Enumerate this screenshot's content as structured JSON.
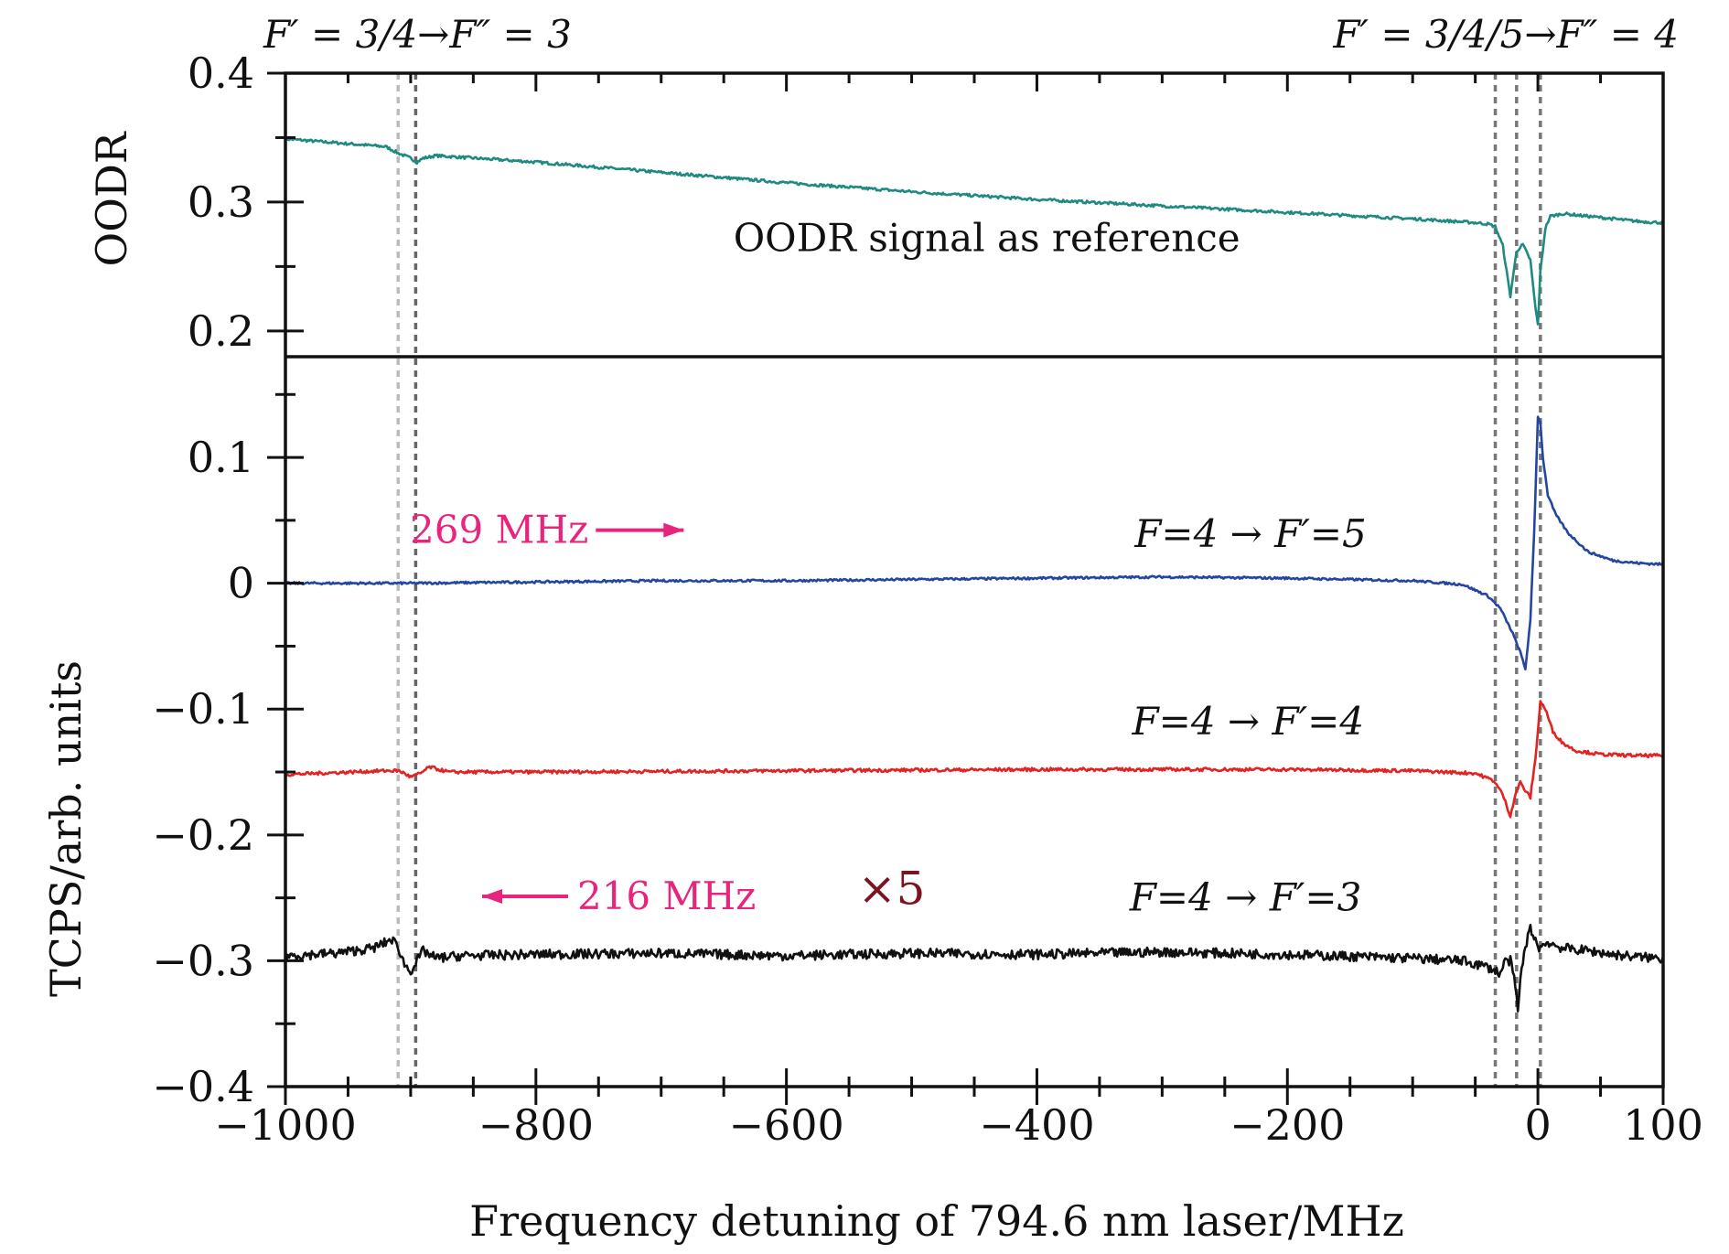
{
  "chart_data": [
    {
      "panel": "top",
      "type": "line",
      "ylabel": "OODR",
      "ylim": [
        0.18,
        0.4
      ],
      "yticks": [
        {
          "value": 0.2,
          "label": "0.2"
        },
        {
          "value": 0.3,
          "label": "0.3"
        },
        {
          "value": 0.4,
          "label": "0.4"
        }
      ],
      "series": [
        {
          "name": "OODR signal",
          "color": "#1f8a80",
          "x": [
            -1000,
            -920,
            -910,
            -900,
            -895,
            -890,
            -880,
            -800,
            -700,
            -600,
            -500,
            -400,
            -300,
            -200,
            -100,
            -50,
            -40,
            -34,
            -28,
            -22,
            -17,
            -12,
            -6,
            -2,
            0,
            2,
            6,
            10,
            20,
            40,
            60,
            80,
            100
          ],
          "y": [
            0.349,
            0.343,
            0.338,
            0.334,
            0.331,
            0.334,
            0.336,
            0.331,
            0.323,
            0.315,
            0.308,
            0.302,
            0.297,
            0.292,
            0.287,
            0.284,
            0.283,
            0.281,
            0.266,
            0.227,
            0.262,
            0.267,
            0.255,
            0.218,
            0.205,
            0.246,
            0.28,
            0.289,
            0.291,
            0.289,
            0.287,
            0.285,
            0.284
          ]
        }
      ],
      "annotations": [
        {
          "text": "OODR signal as reference",
          "x": -440,
          "y": 0.262
        }
      ]
    },
    {
      "panel": "bottom",
      "type": "line",
      "ylabel": "TCPS/arb. units",
      "xlabel": "Frequency detuning of 794.6 nm laser/MHz",
      "xlim": [
        -1000,
        100
      ],
      "ylim": [
        -0.4,
        0.18
      ],
      "xticks": [
        {
          "value": -1000,
          "label": "−1000"
        },
        {
          "value": -800,
          "label": "−800"
        },
        {
          "value": -600,
          "label": "−600"
        },
        {
          "value": -400,
          "label": "−400"
        },
        {
          "value": -200,
          "label": "−200"
        },
        {
          "value": 0,
          "label": "0"
        },
        {
          "value": 100,
          "label": "100"
        }
      ],
      "yticks": [
        {
          "value": -0.4,
          "label": "−0.4"
        },
        {
          "value": -0.3,
          "label": "−0.3"
        },
        {
          "value": -0.2,
          "label": "−0.2"
        },
        {
          "value": -0.1,
          "label": "−0.1"
        },
        {
          "value": 0,
          "label": "0"
        },
        {
          "value": 0.1,
          "label": "0.1"
        }
      ],
      "series": [
        {
          "name": "F=4 → F′=5",
          "color": "#2346a0",
          "x": [
            -1000,
            -900,
            -800,
            -700,
            -600,
            -500,
            -400,
            -300,
            -200,
            -100,
            -60,
            -40,
            -30,
            -20,
            -14,
            -10,
            -6,
            -3,
            0,
            2,
            4,
            8,
            14,
            24,
            40,
            60,
            80,
            100
          ],
          "y": [
            0.0,
            0.0,
            0.001,
            0.002,
            0.002,
            0.003,
            0.004,
            0.005,
            0.004,
            0.002,
            -0.001,
            -0.01,
            -0.02,
            -0.04,
            -0.055,
            -0.068,
            -0.03,
            0.04,
            0.132,
            0.128,
            0.1,
            0.07,
            0.055,
            0.04,
            0.025,
            0.018,
            0.016,
            0.015
          ]
        },
        {
          "name": "F=4 → F′=4",
          "color": "#e32222",
          "x": [
            -1000,
            -920,
            -910,
            -905,
            -900,
            -892,
            -885,
            -870,
            -800,
            -600,
            -400,
            -200,
            -100,
            -50,
            -35,
            -28,
            -22,
            -18,
            -14,
            -10,
            -6,
            -2,
            2,
            6,
            12,
            20,
            30,
            50,
            80,
            100
          ],
          "y": [
            -0.152,
            -0.149,
            -0.149,
            -0.151,
            -0.154,
            -0.151,
            -0.146,
            -0.15,
            -0.15,
            -0.149,
            -0.148,
            -0.148,
            -0.149,
            -0.151,
            -0.157,
            -0.168,
            -0.185,
            -0.168,
            -0.158,
            -0.165,
            -0.17,
            -0.14,
            -0.094,
            -0.1,
            -0.118,
            -0.127,
            -0.133,
            -0.136,
            -0.137,
            -0.137
          ]
        },
        {
          "name": "F=4 → F′=3",
          "color": "#111111",
          "x": [
            -1000,
            -960,
            -930,
            -915,
            -910,
            -905,
            -900,
            -896,
            -890,
            -880,
            -860,
            -800,
            -700,
            -600,
            -500,
            -400,
            -300,
            -200,
            -100,
            -60,
            -40,
            -30,
            -26,
            -22,
            -18,
            -16,
            -14,
            -10,
            -6,
            -2,
            0,
            4,
            8,
            14,
            20,
            40,
            60,
            80,
            100
          ],
          "y": [
            -0.296,
            -0.294,
            -0.29,
            -0.283,
            -0.289,
            -0.303,
            -0.308,
            -0.302,
            -0.292,
            -0.298,
            -0.296,
            -0.295,
            -0.294,
            -0.296,
            -0.294,
            -0.295,
            -0.293,
            -0.295,
            -0.298,
            -0.3,
            -0.305,
            -0.31,
            -0.3,
            -0.3,
            -0.32,
            -0.34,
            -0.315,
            -0.288,
            -0.275,
            -0.282,
            -0.29,
            -0.288,
            -0.285,
            -0.288,
            -0.29,
            -0.292,
            -0.295,
            -0.297,
            -0.298
          ]
        }
      ],
      "annotations": [
        {
          "text": "269 MHz",
          "color": "#e8257c",
          "arrow": "right",
          "x": -758,
          "y": 0.032
        },
        {
          "text": "216 MHz",
          "color": "#e8257c",
          "arrow": "left",
          "x": -767,
          "y": -0.259
        },
        {
          "text": "×5",
          "color": "#7a1520",
          "x": -516,
          "y": -0.255
        },
        {
          "text": "F=4 → F′=5",
          "x": -322,
          "y": 0.029
        },
        {
          "text": "F=4 → F′=4",
          "x": -324,
          "y": -0.12
        },
        {
          "text": "F=4 → F′=3",
          "x": -326,
          "y": -0.26
        }
      ]
    }
  ],
  "top_labels": {
    "left": "F′ = 3/4→F″ = 3",
    "right": "F′ = 3/4/5→F″ = 4"
  },
  "vlines": [
    {
      "x": -910,
      "color": "#bbbbbb"
    },
    {
      "x": -896,
      "color": "#666666"
    },
    {
      "x": -34,
      "color": "#777777"
    },
    {
      "x": -17,
      "color": "#777777"
    },
    {
      "x": 2,
      "color": "#777777"
    }
  ]
}
